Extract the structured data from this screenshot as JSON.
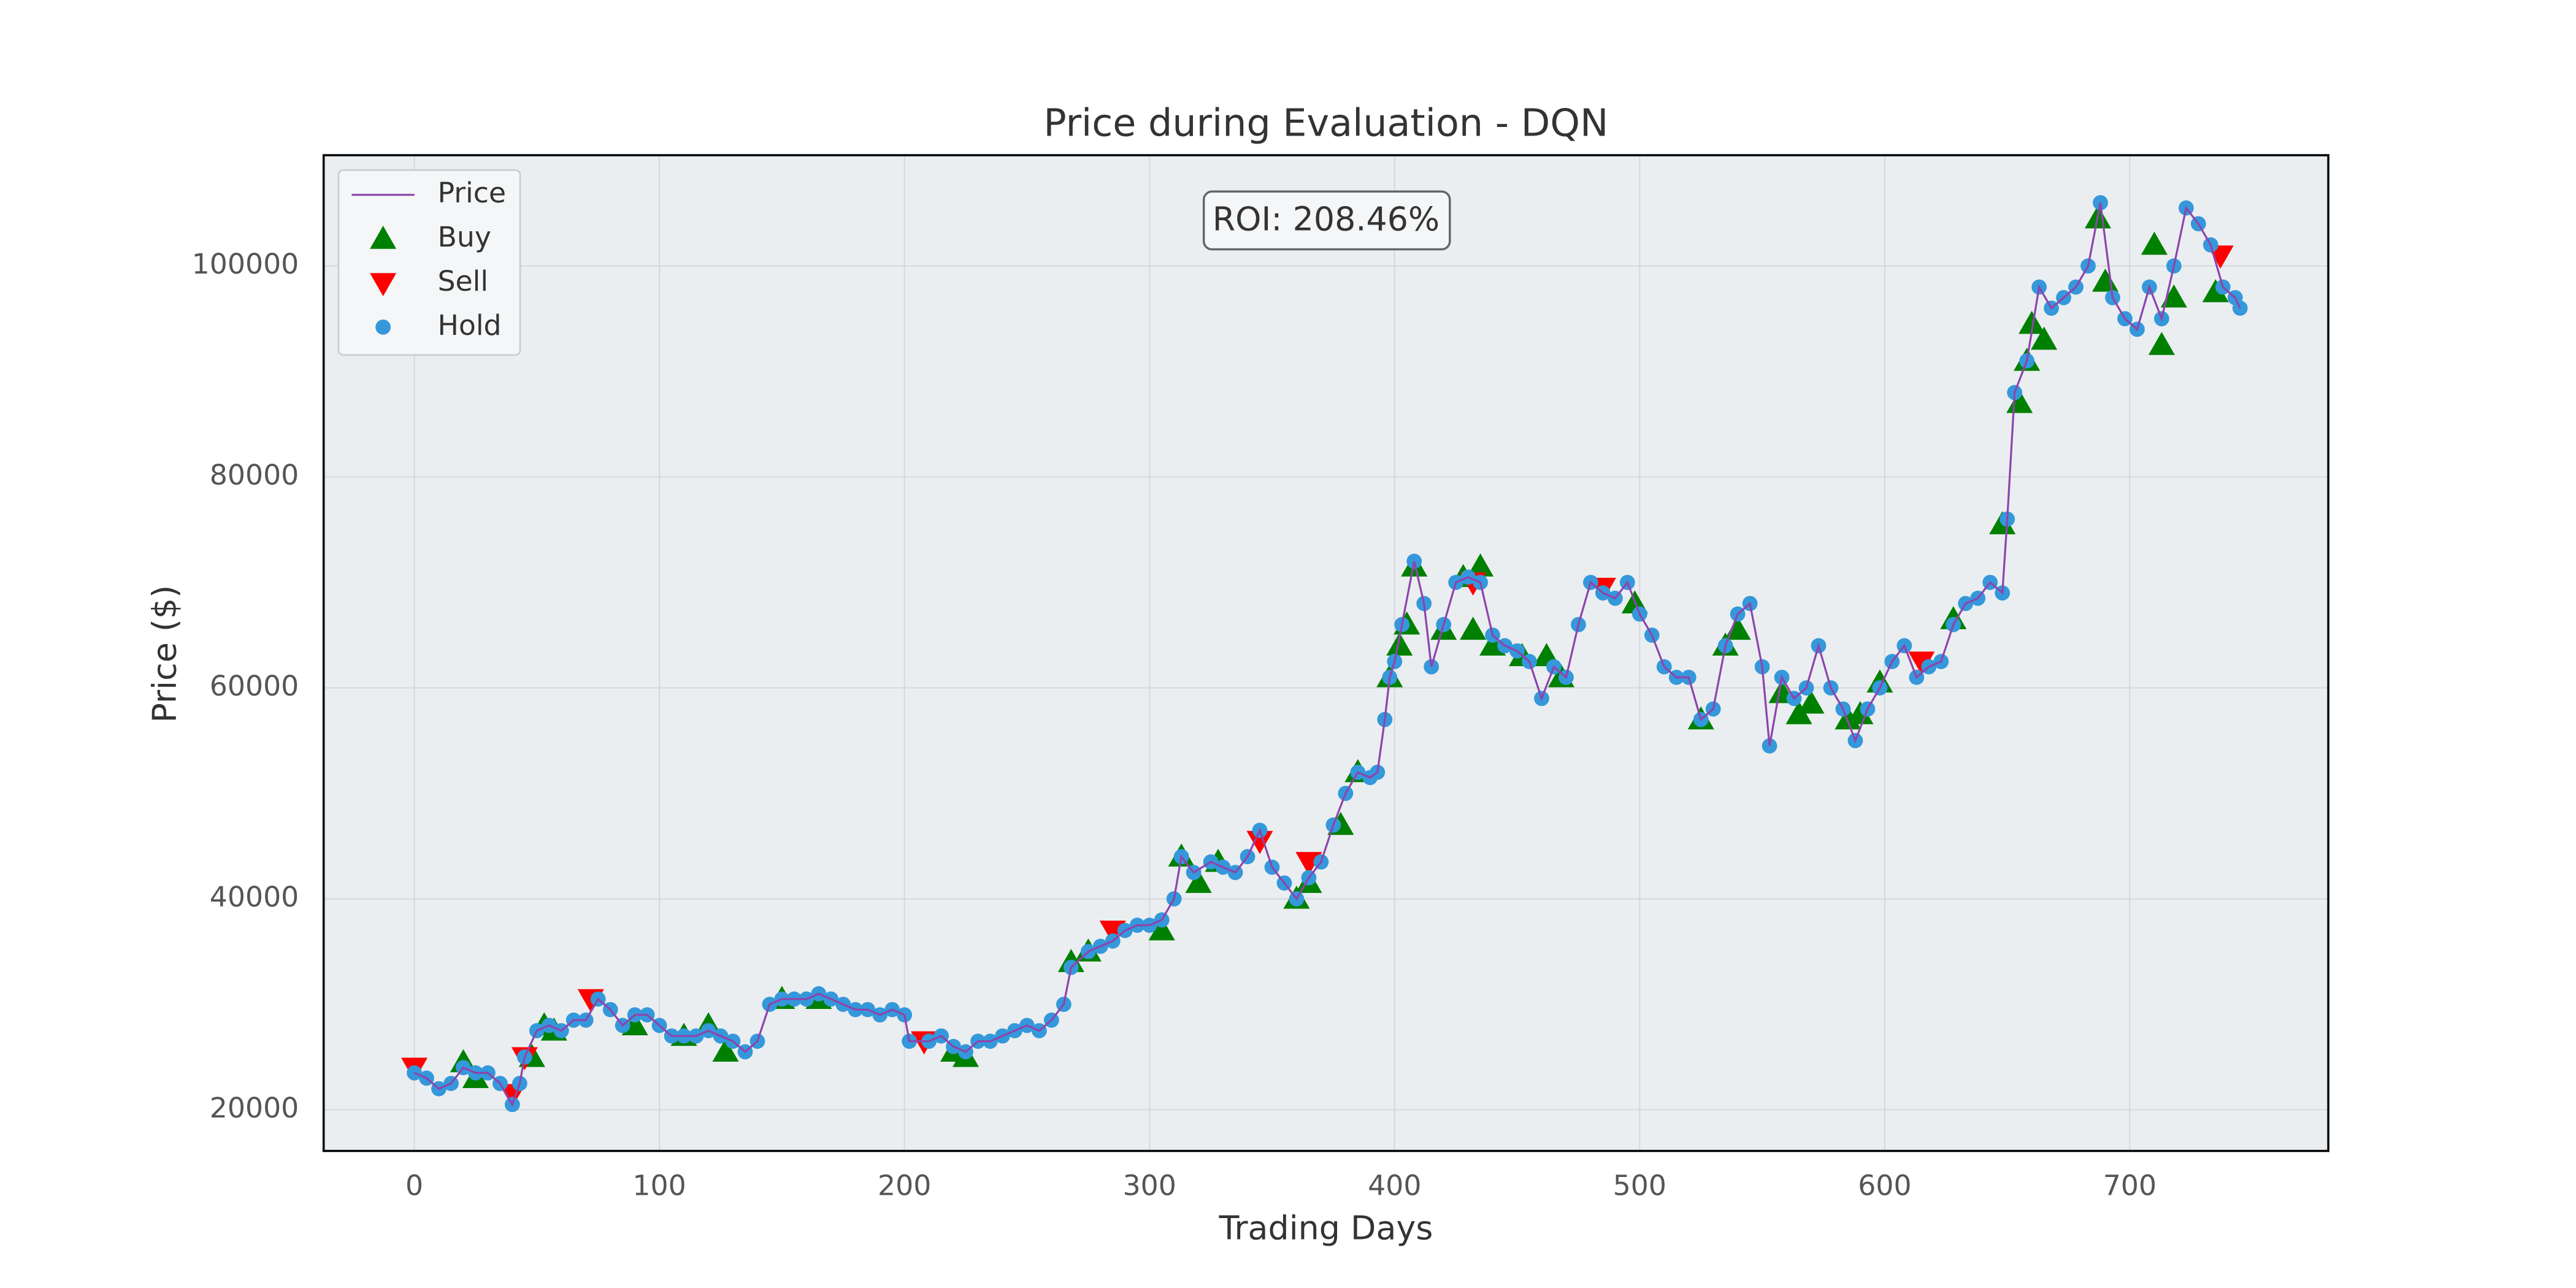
{
  "chart_data": {
    "type": "line",
    "title": "Price during Evaluation - DQN",
    "annotation": "ROI: 208.46%",
    "xlabel": "Trading Days",
    "ylabel": "Price ($)",
    "xlim": [
      -37,
      781
    ],
    "ylim": [
      16100,
      110500
    ],
    "xticks": [
      0,
      100,
      200,
      300,
      400,
      500,
      600,
      700
    ],
    "yticks": [
      20000,
      40000,
      60000,
      80000,
      100000
    ],
    "grid": true,
    "legend": "upper left",
    "x": [
      0,
      5,
      10,
      15,
      20,
      25,
      30,
      35,
      40,
      43,
      45,
      50,
      55,
      60,
      65,
      70,
      75,
      80,
      85,
      90,
      95,
      100,
      105,
      110,
      115,
      120,
      125,
      130,
      135,
      140,
      145,
      150,
      155,
      160,
      165,
      170,
      175,
      180,
      185,
      190,
      195,
      200,
      202,
      210,
      215,
      220,
      225,
      230,
      235,
      240,
      245,
      250,
      255,
      260,
      265,
      268,
      275,
      280,
      285,
      290,
      295,
      300,
      305,
      310,
      313,
      318,
      325,
      330,
      335,
      340,
      345,
      350,
      355,
      360,
      365,
      370,
      375,
      380,
      385,
      390,
      393,
      396,
      398,
      400,
      403,
      408,
      412,
      415,
      420,
      425,
      430,
      435,
      440,
      445,
      450,
      455,
      460,
      465,
      470,
      475,
      480,
      485,
      490,
      495,
      500,
      505,
      510,
      515,
      520,
      525,
      530,
      535,
      540,
      545,
      550,
      553,
      558,
      563,
      568,
      573,
      578,
      583,
      588,
      593,
      598,
      603,
      608,
      613,
      618,
      623,
      628,
      633,
      638,
      643,
      648,
      650,
      653,
      658,
      663,
      668,
      673,
      678,
      683,
      688,
      693,
      698,
      703,
      708,
      713,
      718,
      723,
      728,
      733,
      738,
      743,
      745
    ],
    "series": [
      {
        "name": "Price",
        "color": "#8e44ad",
        "marker": "line",
        "values": [
          23500,
          23000,
          22000,
          22500,
          24000,
          23500,
          23500,
          22500,
          20500,
          22500,
          25000,
          27500,
          28000,
          27500,
          28500,
          28500,
          30500,
          29500,
          28000,
          29000,
          29000,
          28000,
          27000,
          27000,
          27000,
          27500,
          27000,
          26500,
          25500,
          26500,
          30000,
          30500,
          30500,
          30500,
          31000,
          30500,
          30000,
          29500,
          29500,
          29000,
          29500,
          29000,
          26500,
          26500,
          27000,
          26000,
          25500,
          26500,
          26500,
          27000,
          27500,
          28000,
          27500,
          28500,
          30000,
          33500,
          35000,
          35500,
          36000,
          37000,
          37500,
          37500,
          38000,
          40000,
          44000,
          42500,
          43500,
          43000,
          42500,
          44000,
          46500,
          43000,
          41500,
          40000,
          42000,
          43500,
          47000,
          50000,
          52000,
          51500,
          52000,
          57000,
          61000,
          62500,
          66000,
          72000,
          68000,
          62000,
          66000,
          70000,
          70500,
          70000,
          65000,
          64000,
          63500,
          62500,
          59000,
          62000,
          61000,
          66000,
          70000,
          69000,
          68500,
          70000,
          67000,
          65000,
          62000,
          61000,
          61000,
          57000,
          58000,
          64000,
          67000,
          68000,
          62000,
          54500,
          61000,
          59000,
          60000,
          64000,
          60000,
          58000,
          55000,
          58000,
          60000,
          62500,
          64000,
          61000,
          62000,
          62500,
          66000,
          68000,
          68500,
          70000,
          69000,
          76000,
          88000,
          91000,
          98000,
          96000,
          97000,
          98000,
          100000,
          106000,
          97000,
          95000,
          94000,
          98000,
          95000,
          100000,
          105500,
          104000,
          102000,
          98000,
          97000,
          96000
        ]
      },
      {
        "name": "Buy",
        "color": "#008000",
        "marker": "triangle-up",
        "x": [
          20,
          25,
          48,
          53,
          57,
          90,
          110,
          120,
          127,
          150,
          165,
          220,
          225,
          268,
          275,
          305,
          313,
          320,
          328,
          360,
          365,
          378,
          385,
          398,
          402,
          405,
          408,
          420,
          428,
          432,
          435,
          440,
          452,
          462,
          468,
          498,
          525,
          535,
          540,
          558,
          565,
          570,
          585,
          590,
          598,
          628,
          648,
          655,
          658,
          660,
          665,
          687,
          690,
          710,
          713,
          718,
          735
        ],
        "values": [
          24500,
          23000,
          25000,
          28000,
          27500,
          28000,
          27000,
          28000,
          25500,
          30500,
          30500,
          25500,
          25000,
          34000,
          35000,
          37000,
          44000,
          41500,
          43500,
          40000,
          41500,
          47000,
          52000,
          61000,
          64000,
          66000,
          71500,
          65500,
          70500,
          65500,
          71500,
          64000,
          63000,
          63000,
          61000,
          68000,
          57000,
          64000,
          65500,
          59500,
          57500,
          58500,
          57000,
          57500,
          60500,
          66500,
          75500,
          87000,
          91000,
          94500,
          93000,
          104500,
          98500,
          102000,
          92500,
          97000,
          97500
        ]
      },
      {
        "name": "Sell",
        "color": "#ff0000",
        "marker": "triangle-down",
        "x": [
          0,
          40,
          45,
          72,
          208,
          285,
          345,
          365,
          432,
          485,
          615,
          737
        ],
        "values": [
          24000,
          21500,
          25000,
          30500,
          26500,
          37000,
          45500,
          43500,
          70000,
          69500,
          62500,
          101000
        ]
      },
      {
        "name": "Hold",
        "color": "#3498db",
        "marker": "circle",
        "values": [
          23500,
          23000,
          22000,
          22500,
          24000,
          23500,
          23500,
          22500,
          20500,
          22500,
          25000,
          27500,
          28000,
          27500,
          28500,
          28500,
          30500,
          29500,
          28000,
          29000,
          29000,
          28000,
          27000,
          27000,
          27000,
          27500,
          27000,
          26500,
          25500,
          26500,
          30000,
          30500,
          30500,
          30500,
          31000,
          30500,
          30000,
          29500,
          29500,
          29000,
          29500,
          29000,
          26500,
          26500,
          27000,
          26000,
          25500,
          26500,
          26500,
          27000,
          27500,
          28000,
          27500,
          28500,
          30000,
          33500,
          35000,
          35500,
          36000,
          37000,
          37500,
          37500,
          38000,
          40000,
          44000,
          42500,
          43500,
          43000,
          42500,
          44000,
          46500,
          43000,
          41500,
          40000,
          42000,
          43500,
          47000,
          50000,
          52000,
          51500,
          52000,
          57000,
          61000,
          62500,
          66000,
          72000,
          68000,
          62000,
          66000,
          70000,
          70500,
          70000,
          65000,
          64000,
          63500,
          62500,
          59000,
          62000,
          61000,
          66000,
          70000,
          69000,
          68500,
          70000,
          67000,
          65000,
          62000,
          61000,
          61000,
          57000,
          58000,
          64000,
          67000,
          68000,
          62000,
          54500,
          61000,
          59000,
          60000,
          64000,
          60000,
          58000,
          55000,
          58000,
          60000,
          62500,
          64000,
          61000,
          62000,
          62500,
          66000,
          68000,
          68500,
          70000,
          69000,
          76000,
          88000,
          91000,
          98000,
          96000,
          97000,
          98000,
          100000,
          106000,
          97000,
          95000,
          94000,
          98000,
          95000,
          100000,
          105500,
          104000,
          102000,
          98000,
          97000,
          96000
        ]
      }
    ]
  }
}
